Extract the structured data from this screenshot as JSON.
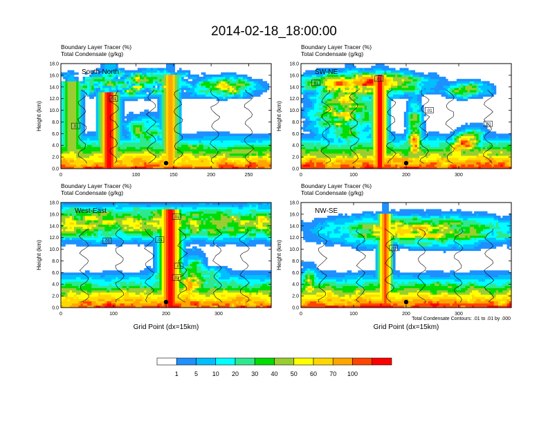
{
  "figure": {
    "title": "2014-02-18_18:00:00",
    "contour_note": "Total Condensate Contours: .01 to .01 by .000"
  },
  "colorbar": {
    "labels": [
      "1",
      "5",
      "10",
      "20",
      "30",
      "40",
      "50",
      "60",
      "70",
      "100"
    ],
    "colors": [
      "#ffffff",
      "#1e90ff",
      "#00bfff",
      "#00ffff",
      "#2ee88e",
      "#00dd00",
      "#9acd32",
      "#ffff00",
      "#ffd700",
      "#ffa500",
      "#ff4500",
      "#ff0000"
    ]
  },
  "chart_data": [
    {
      "type": "heatmap",
      "name": "South-North",
      "subtitle_line1": "Boundary Layer Tracer    (%)",
      "subtitle_line2": "Total Condensate   (g/kg)",
      "ylabel": "Height (km)",
      "xlabel": "",
      "xlim": [
        0,
        280
      ],
      "ylim": [
        0,
        18
      ],
      "xticks": [
        "0",
        "100",
        "150",
        "200",
        "250"
      ],
      "xtick_values": [
        0,
        100,
        150,
        200,
        250
      ],
      "yticks": [
        "0.0",
        "2.0",
        "4.0",
        "6.0",
        "8.0",
        "10.0",
        "12.0",
        "14.0",
        "16.0",
        "18.0"
      ],
      "contour_labels": [
        ".01",
        ".01"
      ],
      "marker_x": 140
    },
    {
      "type": "heatmap",
      "name": "SW-NE",
      "subtitle_line1": "Boundary Layer Tracer    (%)",
      "subtitle_line2": "Total Condensate   (g/kg)",
      "ylabel": "Height (km)",
      "xlabel": "",
      "xlim": [
        0,
        400
      ],
      "ylim": [
        0,
        18
      ],
      "xticks": [
        "0",
        "100",
        "200",
        "300"
      ],
      "xtick_values": [
        0,
        100,
        200,
        300
      ],
      "yticks": [
        "0.0",
        "2.0",
        "4.0",
        "6.0",
        "8.0",
        "10.0",
        "12.0",
        "14.0",
        "16.0",
        "18.0"
      ],
      "contour_labels": [
        ".01",
        ".01",
        ".01",
        ".01"
      ],
      "marker_x": 200
    },
    {
      "type": "heatmap",
      "name": "West-East",
      "subtitle_line1": "Boundary Layer Tracer    (%)",
      "subtitle_line2": "Total Condensate   (g/kg)",
      "ylabel": "Height (km)",
      "xlabel": "Grid Point (dx=15km)",
      "xlim": [
        0,
        400
      ],
      "ylim": [
        0,
        18
      ],
      "xticks": [
        "0",
        "100",
        "200",
        "300"
      ],
      "xtick_values": [
        0,
        100,
        200,
        300
      ],
      "yticks": [
        "0.0",
        "2.0",
        "4.0",
        "6.0",
        "8.0",
        "10.0",
        "12.0",
        "14.0",
        "16.0",
        "18.0"
      ],
      "contour_labels": [
        ".01",
        ".01",
        ".01",
        ".01",
        ".01"
      ],
      "marker_x": 200
    },
    {
      "type": "heatmap",
      "name": "NW-SE",
      "subtitle_line1": "Boundary Layer Tracer    (%)",
      "subtitle_line2": "Total Condensate   (g/kg)",
      "ylabel": "Height (km)",
      "xlabel": "Grid Point (dx=15km)",
      "xlim": [
        0,
        400
      ],
      "ylim": [
        0,
        18
      ],
      "xticks": [
        "0",
        "100",
        "200",
        "300"
      ],
      "xtick_values": [
        0,
        100,
        200,
        300
      ],
      "yticks": [
        "0.0",
        "2.0",
        "4.0",
        "6.0",
        "8.0",
        "10.0",
        "12.0",
        "14.0",
        "16.0",
        "18.0"
      ],
      "contour_labels": [
        ".01"
      ],
      "marker_x": 200
    }
  ]
}
